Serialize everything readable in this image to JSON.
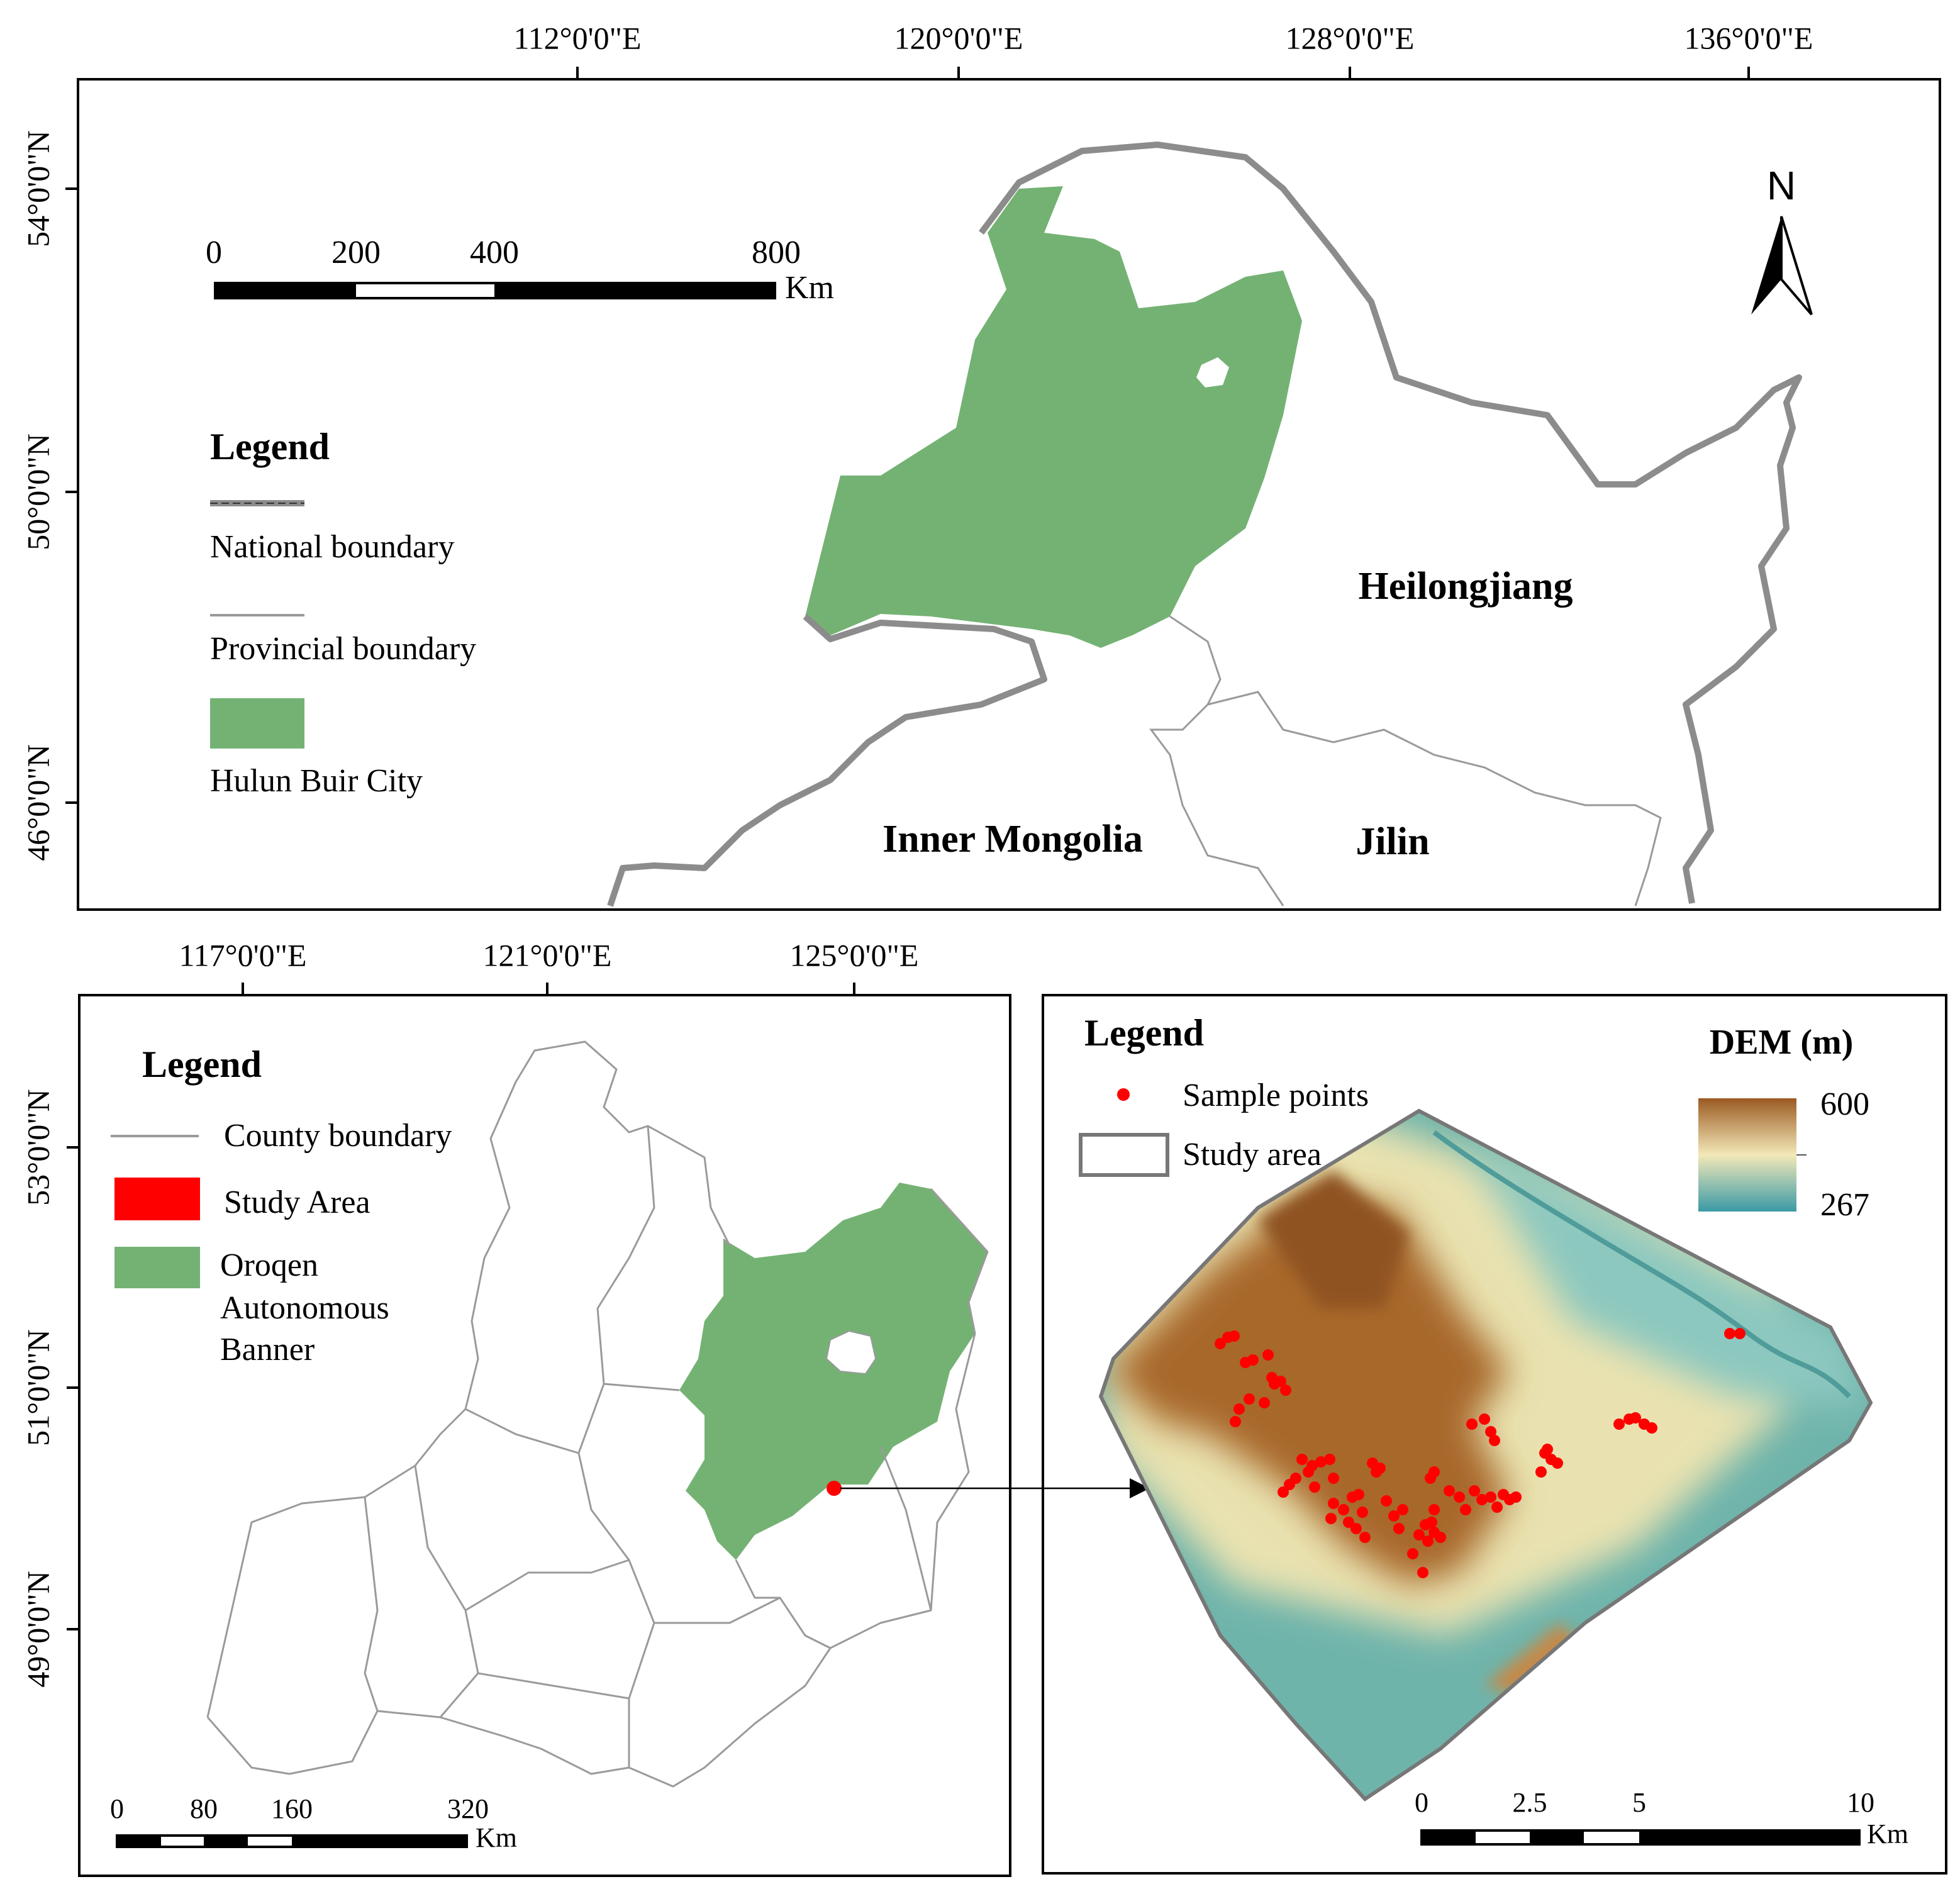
{
  "top_map": {
    "lon_labels": [
      "112°0'0\"E",
      "120°0'0\"E",
      "128°0'0\"E",
      "136°0'0\"E"
    ],
    "lat_labels": [
      "54°0'0\"N",
      "50°0'0\"N",
      "46°0'0\"N"
    ],
    "scale_bar": {
      "labels": [
        "0",
        "200",
        "400",
        "800"
      ],
      "unit": "Km"
    },
    "legend": {
      "title": "Legend",
      "items": [
        "National boundary",
        "Provincial boundary",
        "Hulun Buir City"
      ]
    },
    "north": "N",
    "regions": [
      "Heilongjiang",
      "Inner Mongolia",
      "Jilin"
    ]
  },
  "county_map": {
    "lon_labels": [
      "117°0'0\"E",
      "121°0'0\"E",
      "125°0'0\"E"
    ],
    "lat_labels": [
      "53°0'0\"N",
      "51°0'0\"N",
      "49°0'0\"N"
    ],
    "legend": {
      "title": "Legend",
      "items": [
        "County boundary",
        "Study Area"
      ],
      "banner_lines": [
        "Oroqen",
        "Autonomous",
        "Banner"
      ]
    },
    "scale_bar": {
      "labels": [
        "0",
        "80",
        "160",
        "320"
      ],
      "unit": "Km"
    }
  },
  "study_area_map": {
    "legend": {
      "title": "Legend",
      "items": [
        "Sample points",
        "Study area"
      ]
    },
    "dem_legend": {
      "title": "DEM (m)",
      "max": "600",
      "min": "267"
    },
    "scale_bar": {
      "labels": [
        "0",
        "2.5",
        "5",
        "10"
      ],
      "unit": "Km"
    }
  }
}
